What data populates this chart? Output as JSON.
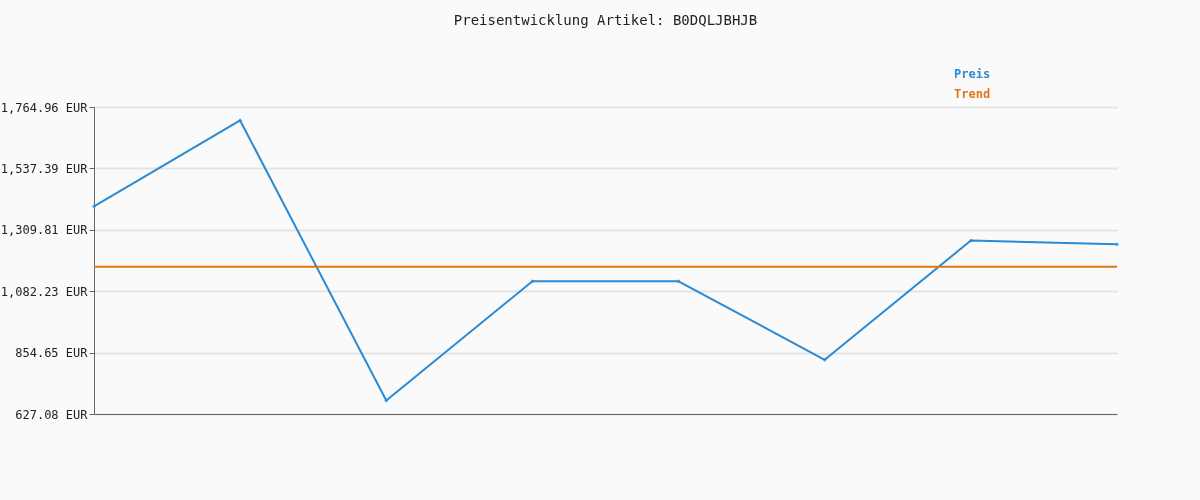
{
  "chart_data": {
    "type": "line",
    "title": "Preisentwicklung Artikel: B0DQLJBHJB",
    "categories": [
      null,
      null,
      null,
      null,
      null,
      null,
      null,
      null
    ],
    "series": [
      {
        "name": "Preis",
        "color": "#2a8ad4",
        "values": [
          1397,
          1715,
          677,
          1119,
          1119,
          828,
          1270,
          1256
        ],
        "marker": "diamond"
      },
      {
        "name": "Trend",
        "color": "#dd7711",
        "values": [
          1173,
          1173,
          1173,
          1173,
          1173,
          1173,
          1173,
          1173
        ],
        "marker": "none"
      }
    ],
    "ylim": [
      627.08,
      1764.96
    ],
    "yticks": [
      {
        "value": 627.08,
        "label": "627.08 EUR"
      },
      {
        "value": 854.65,
        "label": "854.65 EUR"
      },
      {
        "value": 1082.23,
        "label": "1,082.23 EUR"
      },
      {
        "value": 1309.81,
        "label": "1,309.81 EUR"
      },
      {
        "value": 1537.39,
        "label": "1,537.39 EUR"
      },
      {
        "value": 1764.96,
        "label": "1,764.96 EUR"
      }
    ],
    "grid": "y",
    "legend": "top right",
    "tick_labels": "y",
    "line_style": "solid"
  }
}
